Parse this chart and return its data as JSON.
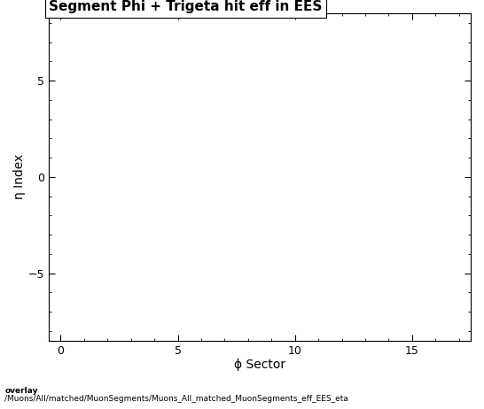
{
  "title": "Segment Phi + Trigeta hit eff in EES",
  "xlabel": "ϕ Sector",
  "ylabel": "η Index",
  "xlim": [
    -0.5,
    17.5
  ],
  "ylim": [
    -8.5,
    8.5
  ],
  "xticks": [
    0,
    5,
    10,
    15
  ],
  "yticks": [
    -5,
    0,
    5
  ],
  "background_color": "#ffffff",
  "plot_bg_color": "#ffffff",
  "footer_line1": "overlay",
  "footer_line2": "/Muons/All/matched/MuonSegments/Muons_All_matched_MuonSegments_eff_EES_eta",
  "title_fontsize": 11,
  "axis_label_fontsize": 10,
  "tick_fontsize": 9,
  "footer_fontsize": 6.5
}
